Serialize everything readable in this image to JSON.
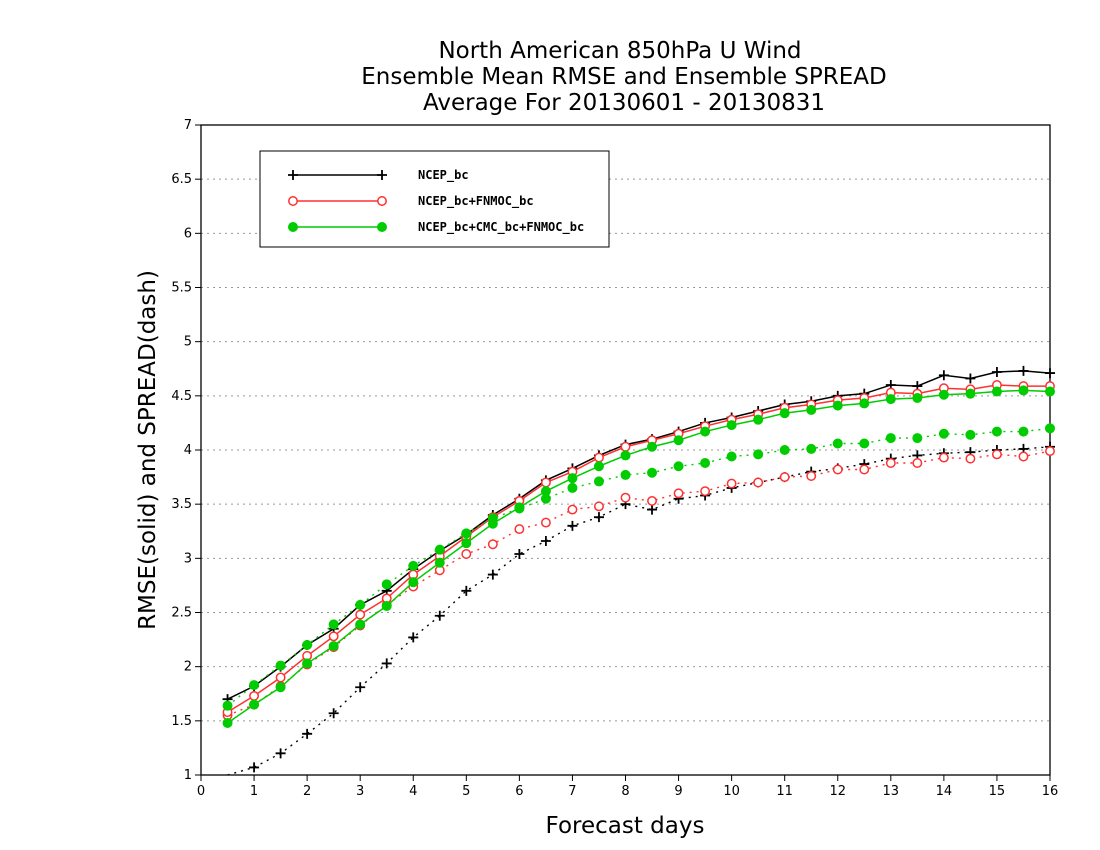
{
  "chart_data": {
    "type": "line",
    "title": [
      "North American 850hPa U Wind",
      "Ensemble Mean RMSE and Ensemble SPREAD",
      "Average For 20130601 - 20130831"
    ],
    "xlabel": "Forecast days",
    "ylabel": "RMSE(solid) and SPREAD(dash)",
    "xlim": [
      0,
      16
    ],
    "ylim": [
      1,
      7
    ],
    "xticks": [
      "0",
      "1",
      "2",
      "3",
      "4",
      "5",
      "6",
      "7",
      "8",
      "9",
      "10",
      "11",
      "12",
      "13",
      "14",
      "15",
      "16"
    ],
    "yticks": [
      "1",
      "1.5",
      "2",
      "2.5",
      "3",
      "3.5",
      "4",
      "4.5",
      "5",
      "5.5",
      "6",
      "6.5",
      "7"
    ],
    "grid": "horizontal dotted",
    "legend_position": "top-left",
    "x": [
      0.5,
      1,
      1.5,
      2,
      2.5,
      3,
      3.5,
      4,
      4.5,
      5,
      5.5,
      6,
      6.5,
      7,
      7.5,
      8,
      8.5,
      9,
      9.5,
      10,
      10.5,
      11,
      11.5,
      12,
      12.5,
      13,
      13.5,
      14,
      14.5,
      15,
      15.5,
      16
    ],
    "series": [
      {
        "name": "NCEP_bc",
        "color": "#000000",
        "marker": "plus",
        "rmse": [
          1.7,
          1.82,
          2.0,
          2.2,
          2.35,
          2.57,
          2.7,
          2.9,
          3.07,
          3.22,
          3.4,
          3.55,
          3.72,
          3.83,
          3.95,
          4.05,
          4.1,
          4.17,
          4.25,
          4.3,
          4.36,
          4.42,
          4.45,
          4.5,
          4.52,
          4.6,
          4.59,
          4.69,
          4.66,
          4.72,
          4.73,
          4.71
        ],
        "spread": [
          0.98,
          1.07,
          1.2,
          1.38,
          1.57,
          1.81,
          2.03,
          2.27,
          2.47,
          2.7,
          2.85,
          3.04,
          3.16,
          3.3,
          3.38,
          3.5,
          3.45,
          3.55,
          3.58,
          3.65,
          3.7,
          3.75,
          3.8,
          3.83,
          3.87,
          3.92,
          3.95,
          3.97,
          3.98,
          4.0,
          4.01,
          4.03
        ]
      },
      {
        "name": "NCEP_bc+FNMOC_bc",
        "color": "#ff3030",
        "marker": "open-circle",
        "rmse": [
          1.58,
          1.73,
          1.9,
          2.1,
          2.28,
          2.48,
          2.63,
          2.85,
          3.02,
          3.2,
          3.38,
          3.53,
          3.7,
          3.8,
          3.93,
          4.03,
          4.09,
          4.15,
          4.22,
          4.28,
          4.33,
          4.39,
          4.42,
          4.46,
          4.48,
          4.53,
          4.52,
          4.57,
          4.56,
          4.6,
          4.59,
          4.59
        ],
        "spread": [
          1.55,
          1.65,
          1.82,
          2.02,
          2.18,
          2.38,
          2.57,
          2.74,
          2.89,
          3.04,
          3.13,
          3.27,
          3.33,
          3.45,
          3.48,
          3.56,
          3.53,
          3.6,
          3.62,
          3.69,
          3.7,
          3.75,
          3.76,
          3.82,
          3.82,
          3.88,
          3.88,
          3.93,
          3.92,
          3.96,
          3.94,
          3.99
        ]
      },
      {
        "name": "NCEP_bc+CMC_bc+FNMOC_bc",
        "color": "#00cc00",
        "marker": "filled-circle",
        "rmse": [
          1.48,
          1.65,
          1.81,
          2.03,
          2.19,
          2.39,
          2.56,
          2.78,
          2.96,
          3.14,
          3.32,
          3.47,
          3.62,
          3.74,
          3.85,
          3.95,
          4.03,
          4.09,
          4.17,
          4.23,
          4.28,
          4.34,
          4.37,
          4.41,
          4.43,
          4.47,
          4.48,
          4.51,
          4.52,
          4.54,
          4.55,
          4.54
        ],
        "spread": [
          1.64,
          1.83,
          2.01,
          2.2,
          2.39,
          2.57,
          2.76,
          2.93,
          3.08,
          3.23,
          3.37,
          3.46,
          3.55,
          3.65,
          3.71,
          3.77,
          3.79,
          3.85,
          3.88,
          3.94,
          3.96,
          4.0,
          4.01,
          4.06,
          4.06,
          4.11,
          4.11,
          4.15,
          4.14,
          4.17,
          4.17,
          4.2
        ]
      }
    ]
  }
}
